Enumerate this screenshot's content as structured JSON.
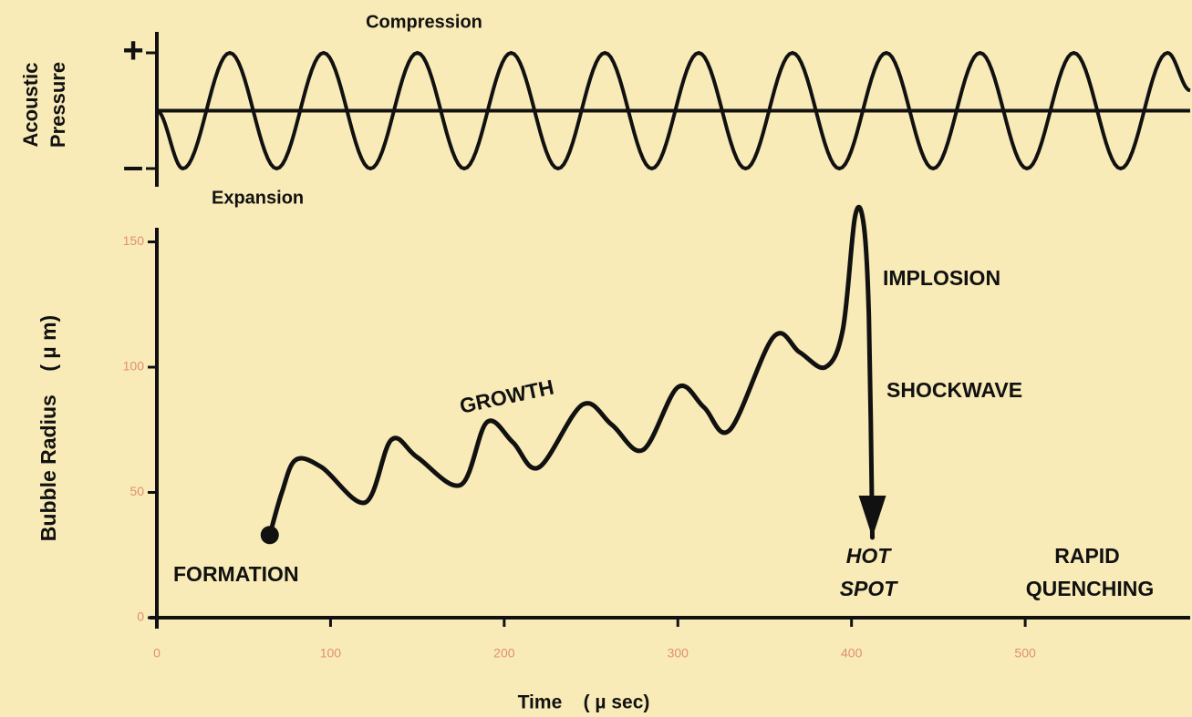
{
  "chart_data": [
    {
      "type": "line",
      "ylabel": [
        "Acoustic",
        "Pressure"
      ],
      "annotations": [
        "Compression",
        "Expansion"
      ],
      "x": [
        0,
        15,
        42,
        69,
        96,
        123,
        150,
        177,
        204,
        231,
        258,
        285,
        312,
        339,
        366,
        393,
        420,
        447,
        474,
        501,
        528,
        555,
        582,
        595
      ],
      "values": [
        0,
        -1,
        1,
        -1,
        1,
        -1,
        1,
        -1,
        1,
        -1,
        1,
        -1,
        1,
        -1,
        1,
        -1,
        1,
        -1,
        1,
        -1,
        1,
        -1,
        1,
        0.35
      ],
      "color": "#111111",
      "xlim": [
        0,
        595
      ],
      "ylim": [
        -1,
        1
      ],
      "yticks": [
        {
          "value": 1,
          "label": "+"
        },
        {
          "value": -1,
          "label": "–"
        }
      ]
    },
    {
      "type": "line",
      "xlabel": "Time    ( µ sec)",
      "ylabel": "Bubble Radius    ( µ m)",
      "annotations": [
        [
          "FORMATION"
        ],
        [
          "GROWTH"
        ],
        [
          "IMPLOSION"
        ],
        [
          "SHOCKWAVE"
        ],
        [
          "HOT",
          "SPOT"
        ],
        [
          "RAPID",
          "QUENCHING"
        ]
      ],
      "x": [
        65,
        72,
        80,
        95,
        120,
        135,
        150,
        175,
        190,
        205,
        220,
        245,
        262,
        280,
        300,
        315,
        330,
        355,
        370,
        385,
        395,
        402,
        407,
        410,
        412
      ],
      "values": [
        33,
        50,
        63,
        60,
        46,
        71,
        64,
        53,
        78,
        70,
        60,
        85,
        77,
        67,
        92,
        84,
        75,
        112,
        106,
        100,
        115,
        160,
        157,
        120,
        32
      ],
      "color": "#111111",
      "xlim": [
        0,
        595
      ],
      "ylim": [
        0,
        160
      ],
      "xticks": [
        0,
        100,
        200,
        300,
        400,
        500
      ],
      "yticks": [
        0,
        50,
        100,
        150
      ]
    }
  ]
}
